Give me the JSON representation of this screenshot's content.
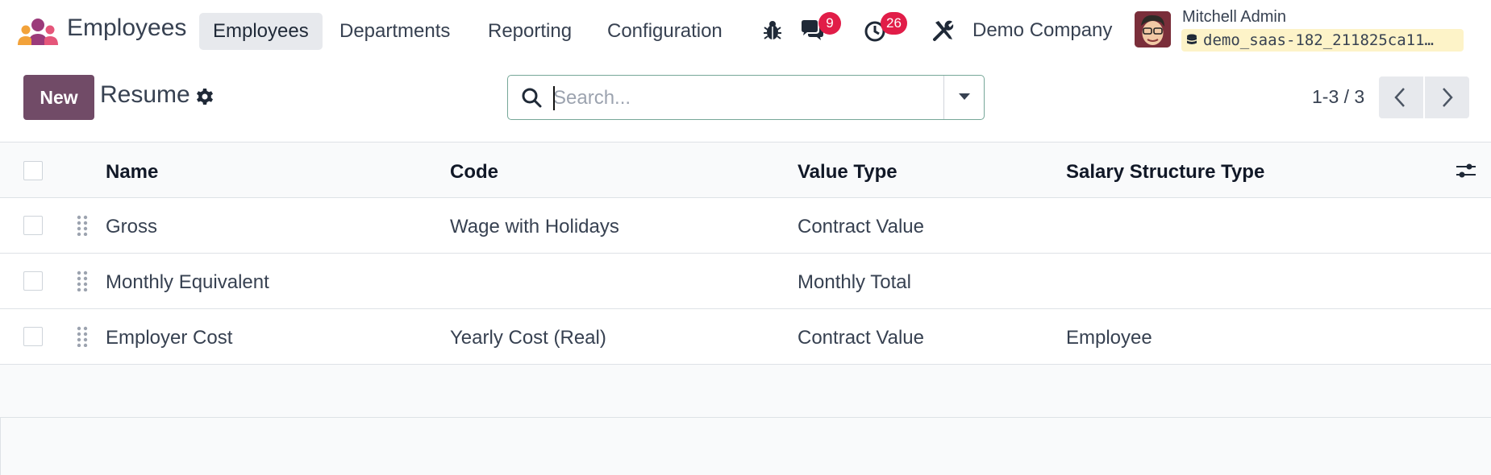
{
  "app": {
    "name": "Employees",
    "logo_icon": "employees-app-icon"
  },
  "menu": {
    "items": [
      {
        "label": "Employees",
        "active": true
      },
      {
        "label": "Departments",
        "active": false
      },
      {
        "label": "Reporting",
        "active": false
      },
      {
        "label": "Configuration",
        "active": false
      }
    ]
  },
  "systray": {
    "bug_icon": "bug-icon",
    "messages_icon": "chat-icon",
    "messages_count": "9",
    "activity_icon": "clock-icon",
    "activity_count": "26",
    "tools_icon": "tools-icon",
    "company": "Demo Company",
    "user_name": "Mitchell Admin",
    "database": "demo_saas-182_211825ca11…"
  },
  "control": {
    "new_label": "New",
    "breadcrumb": "Resume",
    "search_placeholder": "Search...",
    "pager": "1-3 / 3"
  },
  "list": {
    "columns": [
      "Name",
      "Code",
      "Value Type",
      "Salary Structure Type"
    ],
    "rows": [
      {
        "name": "Gross",
        "code": "Wage with Holidays",
        "value_type": "Contract Value",
        "structure_type": ""
      },
      {
        "name": "Monthly Equivalent",
        "code": "",
        "value_type": "Monthly Total",
        "structure_type": ""
      },
      {
        "name": "Employer Cost",
        "code": "Yearly Cost (Real)",
        "value_type": "Contract Value",
        "structure_type": "Employee"
      }
    ]
  },
  "colors": {
    "brand": "#714b67",
    "badge": "#e11d48",
    "db_chip": "#fdf3c8"
  }
}
